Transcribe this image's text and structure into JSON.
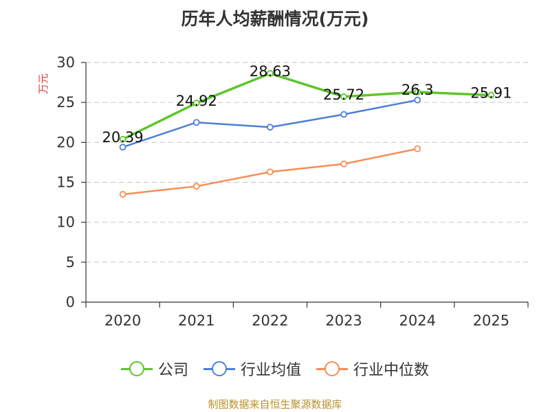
{
  "title": "历年人均薪酬情况(万元)",
  "source": "制图数据来自恒生聚源数据库",
  "colors": {
    "axis": "#333333",
    "grid": "#cccccc",
    "ylabel": "#e23b3b"
  },
  "chart_data": {
    "type": "line",
    "title": "历年人均薪酬情况(万元)",
    "xlabel": "",
    "ylabel": "万元",
    "ylim": [
      0,
      30
    ],
    "yticks": [
      0,
      5,
      10,
      15,
      20,
      25,
      30
    ],
    "grid": true,
    "legend_position": "bottom",
    "categories": [
      "2020",
      "2021",
      "2022",
      "2023",
      "2024",
      "2025"
    ],
    "series": [
      {
        "name": "公司",
        "color": "#5cc52a",
        "width": 3.5,
        "show_labels": true,
        "values": [
          20.39,
          24.92,
          28.63,
          25.72,
          26.3,
          25.91
        ]
      },
      {
        "name": "行业均值",
        "color": "#4a7fd8",
        "width": 2.5,
        "show_labels": false,
        "values": [
          19.4,
          22.5,
          21.9,
          23.5,
          25.3,
          null
        ]
      },
      {
        "name": "行业中位数",
        "color": "#f78d55",
        "width": 2.5,
        "show_labels": false,
        "values": [
          13.5,
          14.5,
          16.3,
          17.3,
          19.2,
          null
        ]
      }
    ]
  }
}
